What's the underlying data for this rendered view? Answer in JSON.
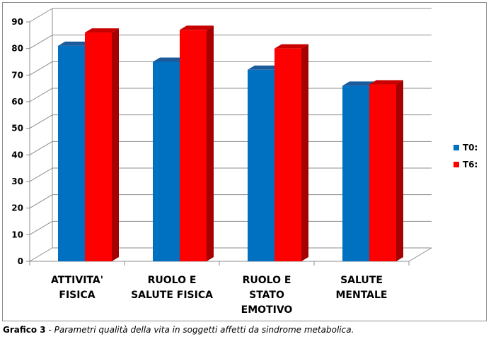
{
  "chart_data": {
    "type": "bar",
    "categories": [
      [
        "ATTIVITA'",
        "FISICA"
      ],
      [
        "RUOLO E",
        "SALUTE FISICA"
      ],
      [
        "RUOLO E",
        "STATO",
        "EMOTIVO"
      ],
      [
        "SALUTE",
        "MENTALE"
      ]
    ],
    "series": [
      {
        "name": "T0:",
        "values": [
          81,
          75,
          72,
          66
        ],
        "color": "#0070c0",
        "top_color": "#1b5b9c",
        "side_color": "#0b4f8f"
      },
      {
        "name": "T6:",
        "values": [
          86,
          87,
          80,
          66.5
        ],
        "color": "#ff0000",
        "top_color": "#c80000",
        "side_color": "#a60000"
      }
    ],
    "ylim": [
      0,
      90
    ],
    "yticks": [
      0,
      10,
      20,
      30,
      40,
      50,
      60,
      70,
      80,
      90
    ],
    "grid": true,
    "legend_position": "right",
    "xlabel": "",
    "ylabel": ""
  },
  "caption": {
    "label": "Grafico 3",
    "separator": " - ",
    "text": "Parametri qualità della vita in soggetti affetti da sindrome metabolica."
  }
}
